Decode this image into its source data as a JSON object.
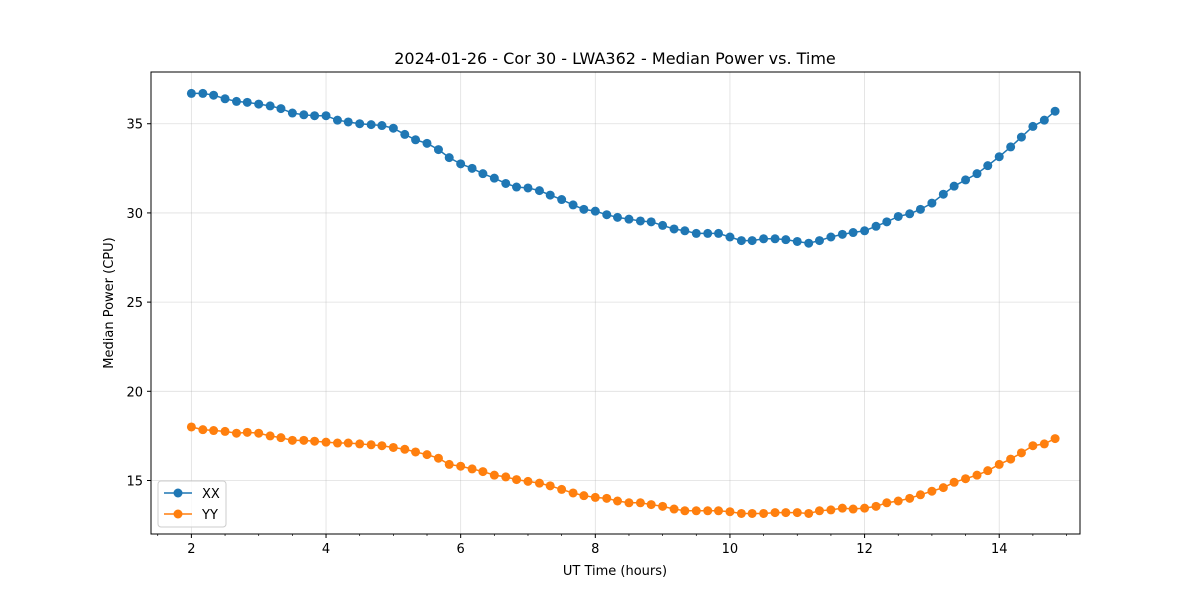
{
  "chart_data": {
    "type": "line",
    "title": "2024-01-26 - Cor 30 - LWA362 - Median Power vs. Time",
    "xlabel": "UT Time (hours)",
    "ylabel": "Median Power (CPU)",
    "xlim": [
      1.4,
      15.2
    ],
    "ylim": [
      12.0,
      37.9
    ],
    "xticks": [
      2,
      4,
      6,
      8,
      10,
      12,
      14
    ],
    "yticks": [
      15,
      20,
      25,
      30,
      35
    ],
    "grid": true,
    "legend_position": "lower-left",
    "x": [
      2.0,
      2.17,
      2.33,
      2.5,
      2.67,
      2.83,
      3.0,
      3.17,
      3.33,
      3.5,
      3.67,
      3.83,
      4.0,
      4.17,
      4.33,
      4.5,
      4.67,
      4.83,
      5.0,
      5.17,
      5.33,
      5.5,
      5.67,
      5.83,
      6.0,
      6.17,
      6.33,
      6.5,
      6.67,
      6.83,
      7.0,
      7.17,
      7.33,
      7.5,
      7.67,
      7.83,
      8.0,
      8.17,
      8.33,
      8.5,
      8.67,
      8.83,
      9.0,
      9.17,
      9.33,
      9.5,
      9.67,
      9.83,
      10.0,
      10.17,
      10.33,
      10.5,
      10.67,
      10.83,
      11.0,
      11.17,
      11.33,
      11.5,
      11.67,
      11.83,
      12.0,
      12.17,
      12.33,
      12.5,
      12.67,
      12.83,
      13.0,
      13.17,
      13.33,
      13.5,
      13.67,
      13.83,
      14.0,
      14.17,
      14.33,
      14.5,
      14.67,
      14.83
    ],
    "series": [
      {
        "name": "XX",
        "color": "#1f77b4",
        "values": [
          36.7,
          36.7,
          36.6,
          36.4,
          36.25,
          36.2,
          36.1,
          36.0,
          35.85,
          35.6,
          35.5,
          35.45,
          35.45,
          35.2,
          35.1,
          35.0,
          34.95,
          34.9,
          34.75,
          34.4,
          34.1,
          33.9,
          33.55,
          33.1,
          32.75,
          32.5,
          32.2,
          31.95,
          31.65,
          31.45,
          31.4,
          31.25,
          31.0,
          30.75,
          30.45,
          30.2,
          30.1,
          29.9,
          29.75,
          29.65,
          29.55,
          29.5,
          29.3,
          29.1,
          29.0,
          28.85,
          28.85,
          28.85,
          28.65,
          28.45,
          28.45,
          28.55,
          28.55,
          28.5,
          28.4,
          28.3,
          28.45,
          28.65,
          28.8,
          28.9,
          29.0,
          29.25,
          29.5,
          29.8,
          29.95,
          30.2,
          30.55,
          31.05,
          31.5,
          31.85,
          32.2,
          32.65,
          33.15,
          33.7,
          34.25,
          34.85,
          35.2,
          35.7
        ]
      },
      {
        "name": "YY",
        "color": "#ff7f0e",
        "values": [
          18.0,
          17.85,
          17.8,
          17.75,
          17.65,
          17.7,
          17.65,
          17.5,
          17.4,
          17.25,
          17.25,
          17.2,
          17.15,
          17.1,
          17.1,
          17.05,
          17.0,
          16.95,
          16.85,
          16.75,
          16.6,
          16.45,
          16.25,
          15.9,
          15.8,
          15.65,
          15.5,
          15.3,
          15.2,
          15.05,
          14.95,
          14.85,
          14.7,
          14.5,
          14.3,
          14.15,
          14.05,
          14.0,
          13.85,
          13.75,
          13.75,
          13.65,
          13.55,
          13.4,
          13.3,
          13.3,
          13.3,
          13.3,
          13.25,
          13.15,
          13.15,
          13.15,
          13.2,
          13.2,
          13.2,
          13.15,
          13.3,
          13.35,
          13.45,
          13.4,
          13.45,
          13.55,
          13.75,
          13.85,
          14.0,
          14.2,
          14.4,
          14.6,
          14.9,
          15.1,
          15.3,
          15.55,
          15.9,
          16.2,
          16.55,
          16.95,
          17.05,
          17.35
        ]
      }
    ]
  }
}
